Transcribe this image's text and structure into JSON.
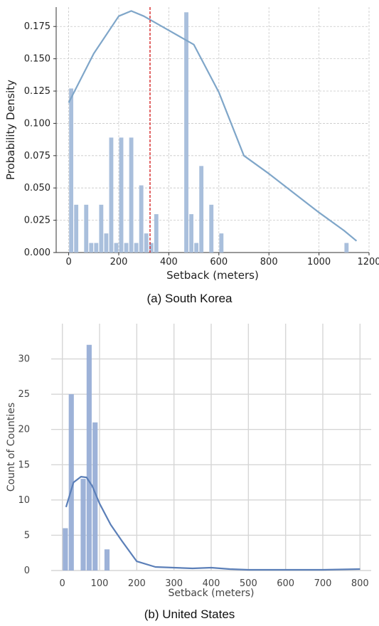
{
  "chart_data": [
    {
      "type": "bar",
      "subtype": "histogram-with-kde",
      "caption": "(a) South Korea",
      "xlabel": "Setback (meters)",
      "ylabel": "Probability Density",
      "xlim": [
        -50,
        1200
      ],
      "ylim": [
        0,
        0.19
      ],
      "xticks": [
        "0",
        "200",
        "400",
        "600",
        "800",
        "1000",
        "1200"
      ],
      "yticks": [
        "0.000",
        "0.025",
        "0.050",
        "0.075",
        "0.100",
        "0.125",
        "0.150",
        "0.175"
      ],
      "grid": true,
      "colors": {
        "bars": "#a9bfdc",
        "kde": "#7fa6c9",
        "vline": "#d62728"
      },
      "bin_width": 20,
      "bins": [
        {
          "x": 10,
          "value": 0.127
        },
        {
          "x": 30,
          "value": 0.037
        },
        {
          "x": 50,
          "value": 0.0
        },
        {
          "x": 70,
          "value": 0.037
        },
        {
          "x": 90,
          "value": 0.0074
        },
        {
          "x": 110,
          "value": 0.0074
        },
        {
          "x": 130,
          "value": 0.037
        },
        {
          "x": 150,
          "value": 0.0148
        },
        {
          "x": 170,
          "value": 0.089
        },
        {
          "x": 190,
          "value": 0.0074
        },
        {
          "x": 210,
          "value": 0.089
        },
        {
          "x": 230,
          "value": 0.0074
        },
        {
          "x": 250,
          "value": 0.089
        },
        {
          "x": 270,
          "value": 0.0074
        },
        {
          "x": 290,
          "value": 0.052
        },
        {
          "x": 310,
          "value": 0.0148
        },
        {
          "x": 330,
          "value": 0.0074
        },
        {
          "x": 350,
          "value": 0.0297
        },
        {
          "x": 470,
          "value": 0.186
        },
        {
          "x": 490,
          "value": 0.0297
        },
        {
          "x": 510,
          "value": 0.0074
        },
        {
          "x": 530,
          "value": 0.067
        },
        {
          "x": 570,
          "value": 0.037
        },
        {
          "x": 610,
          "value": 0.0148
        },
        {
          "x": 1110,
          "value": 0.0074
        }
      ],
      "kde_x": [
        0,
        100,
        200,
        250,
        300,
        400,
        500,
        600,
        700,
        800,
        900,
        1000,
        1100,
        1150
      ],
      "kde_y": [
        0.116,
        0.154,
        0.183,
        0.187,
        0.183,
        0.172,
        0.161,
        0.124,
        0.075,
        0.061,
        0.046,
        0.031,
        0.017,
        0.009
      ],
      "vline_x": 325
    },
    {
      "type": "bar",
      "subtype": "histogram-with-kde",
      "caption": "(b) United States",
      "xlabel": "Setback (meters)",
      "ylabel": "Count of Counties",
      "xlim": [
        -30,
        830
      ],
      "ylim": [
        0,
        35
      ],
      "xticks": [
        "0",
        "100",
        "200",
        "300",
        "400",
        "500",
        "600",
        "700",
        "800"
      ],
      "yticks": [
        "0",
        "5",
        "10",
        "15",
        "20",
        "25",
        "30"
      ],
      "grid": true,
      "colors": {
        "bars": "#98aed6",
        "kde": "#5b7fb8"
      },
      "bin_width": 16,
      "bins": [
        {
          "x": 8,
          "value": 6
        },
        {
          "x": 24,
          "value": 25
        },
        {
          "x": 40,
          "value": 0
        },
        {
          "x": 56,
          "value": 13
        },
        {
          "x": 72,
          "value": 32
        },
        {
          "x": 88,
          "value": 21
        },
        {
          "x": 104,
          "value": 0
        },
        {
          "x": 120,
          "value": 3
        }
      ],
      "kde_x": [
        10,
        30,
        50,
        65,
        80,
        100,
        130,
        160,
        200,
        250,
        300,
        350,
        400,
        450,
        500,
        600,
        700,
        800
      ],
      "kde_y": [
        9,
        12.5,
        13.3,
        13.2,
        12.0,
        9.5,
        6.5,
        4.2,
        1.3,
        0.5,
        0.4,
        0.3,
        0.4,
        0.2,
        0.1,
        0.1,
        0.1,
        0.2
      ]
    }
  ]
}
